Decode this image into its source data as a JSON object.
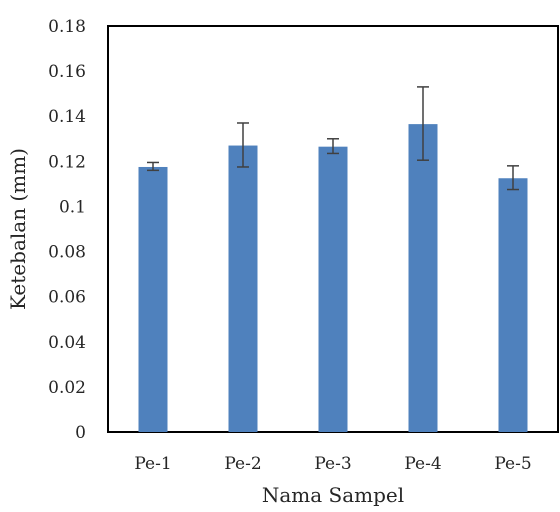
{
  "chart_data": {
    "type": "bar",
    "categories": [
      "Pe-1",
      "Pe-2",
      "Pe-3",
      "Pe-4",
      "Pe-5"
    ],
    "values": [
      0.1175,
      0.127,
      0.1265,
      0.1365,
      0.1125
    ],
    "error_low": [
      0.116,
      0.1175,
      0.1235,
      0.1205,
      0.1075
    ],
    "error_high": [
      0.1195,
      0.137,
      0.13,
      0.153,
      0.118
    ],
    "xlabel": "Nama Sampel",
    "ylabel": "Ketebalan (mm)",
    "ylim": [
      0,
      0.18
    ],
    "yticks": [
      "0",
      "0.02",
      "0.04",
      "0.06",
      "0.08",
      "0.1",
      "0.12",
      "0.14",
      "0.16",
      "0.18"
    ],
    "bar_color": "#4f81bd",
    "errorbar_color": "#404040",
    "grid": false
  }
}
